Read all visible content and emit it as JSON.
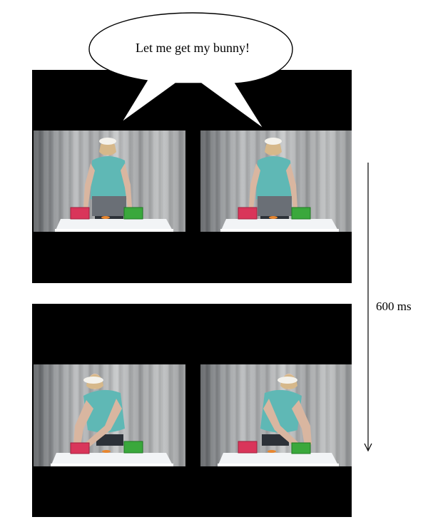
{
  "speech_bubble": {
    "text": "Let me get my bunny!"
  },
  "timeline": {
    "label": "600 ms"
  },
  "colors": {
    "frame_background": "#000000",
    "shirt": "#5fb8b5",
    "red_box": "#d9355a",
    "green_box": "#3aa83c",
    "tablecloth": "#f2f4f6",
    "carrot": "#e8862f"
  },
  "panels": [
    {
      "row": "top",
      "side": "left",
      "actor_pose": "standing",
      "reach_target": "none"
    },
    {
      "row": "top",
      "side": "right",
      "actor_pose": "standing",
      "reach_target": "none"
    },
    {
      "row": "bottom",
      "side": "left",
      "actor_pose": "reaching",
      "reach_target": "red-box"
    },
    {
      "row": "bottom",
      "side": "right",
      "actor_pose": "reaching",
      "reach_target": "green-box"
    }
  ]
}
